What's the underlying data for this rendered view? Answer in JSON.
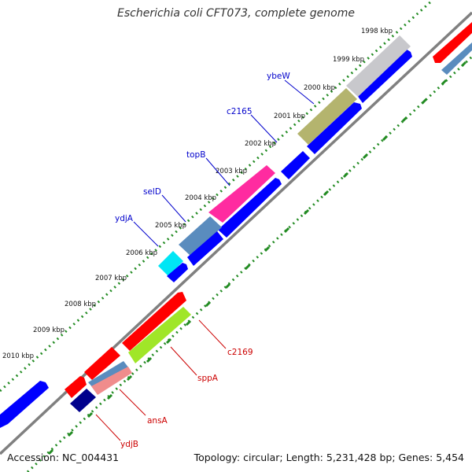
{
  "title": "Escherichia coli CFT073, complete genome",
  "accession": "Accession: NC_004431",
  "summary": "Topology: circular; Length: 5,231,428 bp; Genes: 5,454",
  "ticks": [
    "1998 kbp",
    "1999 kbp",
    "2000 kbp",
    "2001 kbp",
    "2002 kbp",
    "2003 kbp",
    "2004 kbp",
    "2005 kbp",
    "2006 kbp",
    "2007 kbp",
    "2008 kbp",
    "2009 kbp",
    "2010 kbp"
  ],
  "forward_labels": [
    "ybeW",
    "c2165",
    "topB",
    "selD",
    "ydjA"
  ],
  "reverse_labels": [
    "c2169",
    "sppA",
    "ansA",
    "ydjB"
  ],
  "colors": {
    "forward_label": "#0000cc",
    "reverse_label": "#cc0000",
    "backbone": "#808080",
    "tick_marks": "#228b22",
    "forward_cds": "#0000ff",
    "reverse_cds": "#ff0000"
  }
}
